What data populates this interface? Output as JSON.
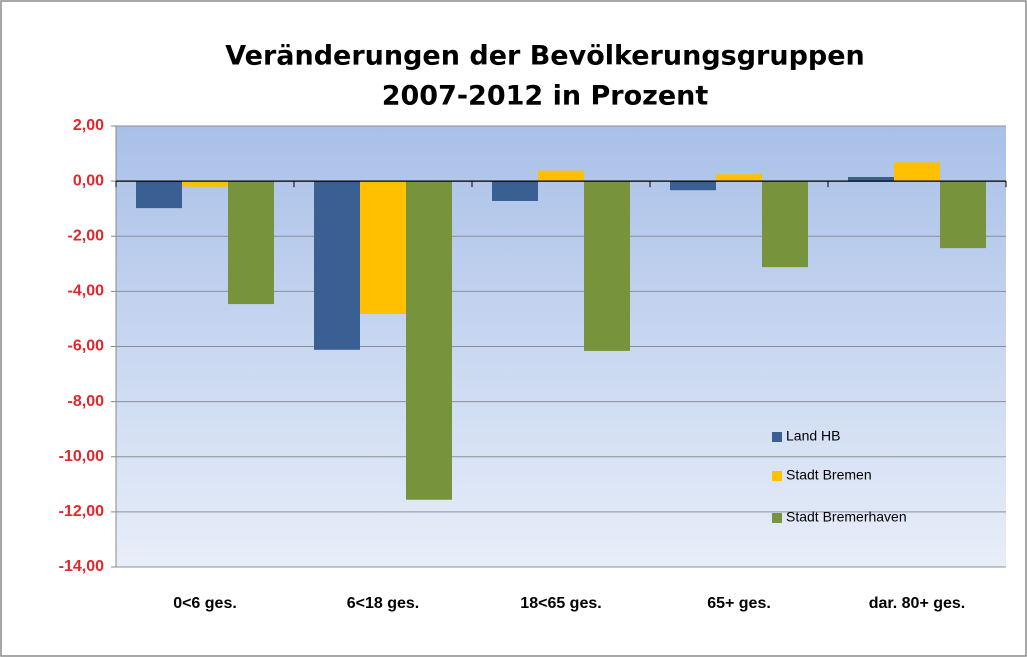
{
  "chart_data": {
    "type": "bar",
    "title": [
      "Veränderungen der Bevölkerungsgruppen",
      "2007-2012 in Prozent"
    ],
    "categories": [
      "0<6 ges.",
      "6<18 ges.",
      "18<65 ges.",
      "65+ ges.",
      "dar. 80+ ges."
    ],
    "series": [
      {
        "name": "Land HB",
        "color": "#3a5f92",
        "values": [
          -0.98,
          -6.12,
          -0.72,
          -0.33,
          0.15
        ]
      },
      {
        "name": "Stadt Bremen",
        "color": "#ffc000",
        "values": [
          -0.2,
          -4.82,
          0.38,
          0.25,
          0.68
        ]
      },
      {
        "name": "Stadt Bremerhaven",
        "color": "#77933c",
        "values": [
          -4.46,
          -11.56,
          -6.16,
          -3.12,
          -2.43
        ]
      }
    ],
    "ylim": [
      -14,
      2
    ],
    "yticks": [
      {
        "value": 2,
        "label": "2,00"
      },
      {
        "value": 0,
        "label": "0,00"
      },
      {
        "value": -2,
        "label": "-2,00"
      },
      {
        "value": -4,
        "label": "-4,00"
      },
      {
        "value": -6,
        "label": "-6,00"
      },
      {
        "value": -8,
        "label": "-8,00"
      },
      {
        "value": -10,
        "label": "-10,00"
      },
      {
        "value": -12,
        "label": "-12,00"
      },
      {
        "value": -14,
        "label": "-14,00"
      }
    ],
    "grid": true,
    "legend": "lower right"
  }
}
